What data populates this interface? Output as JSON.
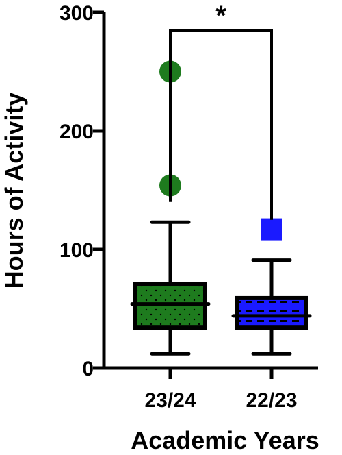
{
  "chart_data": {
    "type": "box",
    "xlabel": "Academic Years",
    "ylabel": "Hours of Activity",
    "ylim": [
      0,
      300
    ],
    "yticks": [
      0,
      100,
      200,
      300
    ],
    "categories": [
      "23/24",
      "22/23"
    ],
    "boxes": [
      {
        "category": "23/24",
        "whisker_low": 12,
        "q1": 34,
        "median": 54,
        "q3": 71,
        "whisker_high": 123,
        "outliers": [
          154,
          250
        ],
        "fill": "#1e7b1e",
        "pattern": "dots",
        "marker": "circle",
        "marker_color": "#1e7b1e"
      },
      {
        "category": "22/23",
        "whisker_low": 12,
        "q1": 34,
        "median": 44,
        "q3": 59,
        "whisker_high": 91,
        "outliers": [
          117
        ],
        "fill": "#1a1aff",
        "pattern": "dashes",
        "marker": "square",
        "marker_color": "#1a1aff"
      }
    ],
    "significance": {
      "between": [
        "23/24",
        "22/23"
      ],
      "label": "*",
      "bar_y": 285,
      "left_drop_to": 140,
      "right_drop_to": 125
    }
  }
}
